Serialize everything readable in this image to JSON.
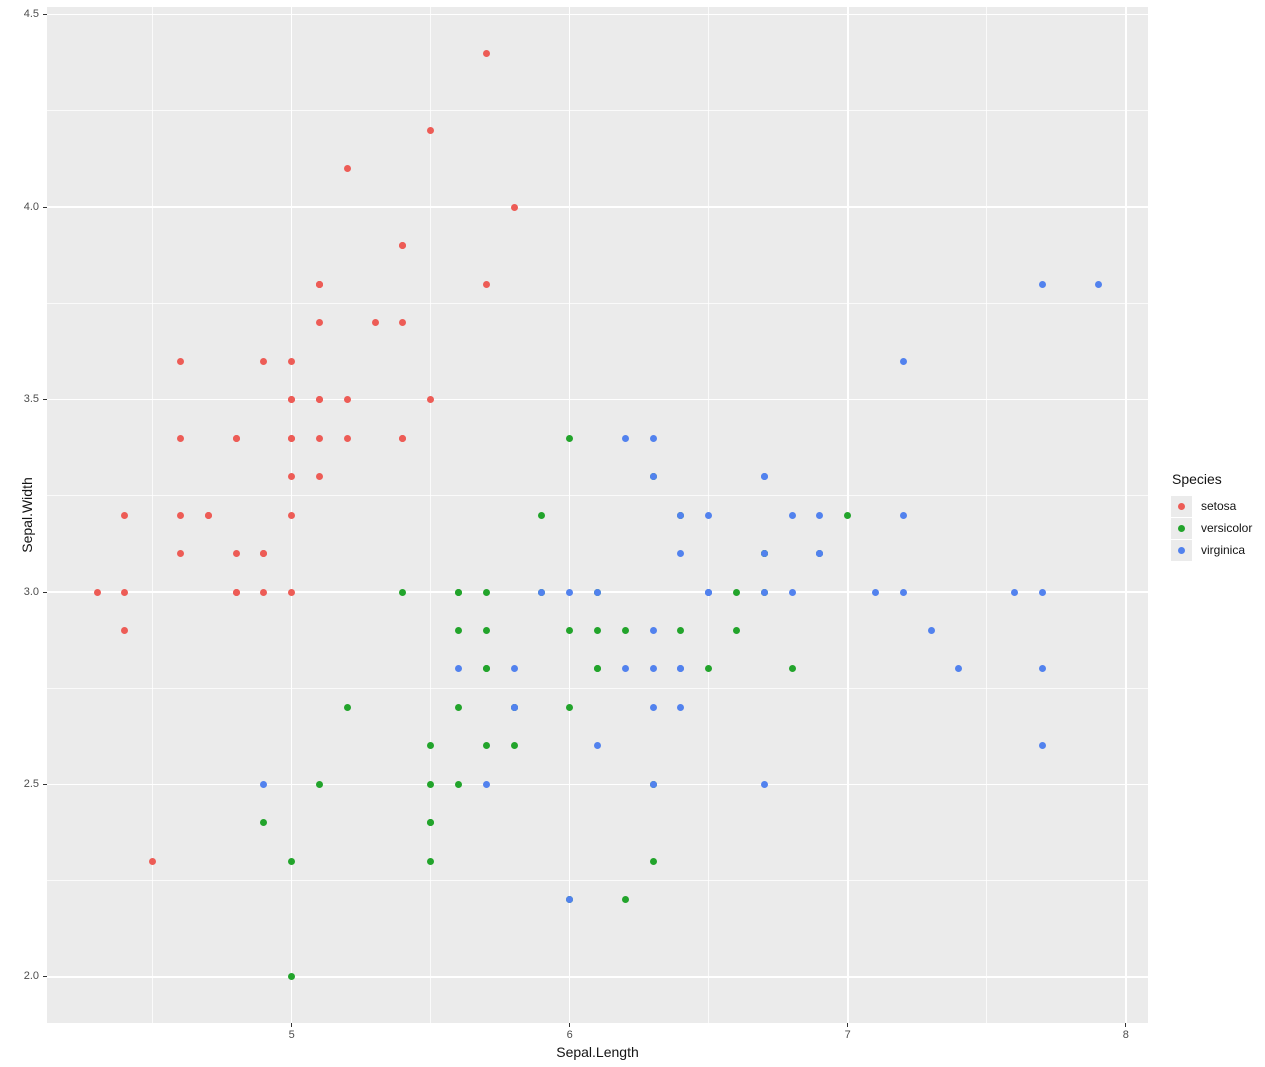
{
  "style": {
    "background": "#FFFFFF",
    "panel_background": "#EBEBEB",
    "grid_color": "#FFFFFF",
    "tick_color": "#333333",
    "tick_label_color": "#4D4D4D",
    "axis_title_color": "#141414"
  },
  "legend": {
    "title": "Species",
    "position": "right",
    "items": [
      {
        "label": "setosa",
        "color": "#ED5C56"
      },
      {
        "label": "versicolor",
        "color": "#22A42B"
      },
      {
        "label": "virginica",
        "color": "#5282EE"
      }
    ]
  },
  "chart_data": {
    "type": "scatter",
    "title": "",
    "xlabel": "Sepal.Length",
    "ylabel": "Sepal.Width",
    "xlim": [
      4.12,
      8.08
    ],
    "ylim": [
      1.88,
      4.52
    ],
    "grid": true,
    "legend_title": "Species",
    "legend_position": "right",
    "x_major_ticks": [
      5,
      6,
      7,
      8
    ],
    "x_tick_labels": [
      "5",
      "6",
      "7",
      "8"
    ],
    "x_minor_ticks": [
      4.5,
      5.5,
      6.5,
      7.5
    ],
    "y_major_ticks": [
      2.0,
      2.5,
      3.0,
      3.5,
      4.0,
      4.5
    ],
    "y_tick_labels": [
      "2.0",
      "2.5",
      "3.0",
      "3.5",
      "4.0",
      "4.5"
    ],
    "y_minor_ticks": [
      2.25,
      2.75,
      3.25,
      3.75,
      4.25
    ],
    "series": [
      {
        "name": "setosa",
        "color": "#ED5C56",
        "points": [
          [
            5.1,
            3.5
          ],
          [
            4.9,
            3.0
          ],
          [
            4.7,
            3.2
          ],
          [
            4.6,
            3.1
          ],
          [
            5.0,
            3.6
          ],
          [
            5.4,
            3.9
          ],
          [
            4.6,
            3.4
          ],
          [
            5.0,
            3.4
          ],
          [
            4.4,
            2.9
          ],
          [
            4.9,
            3.1
          ],
          [
            5.4,
            3.7
          ],
          [
            4.8,
            3.4
          ],
          [
            4.8,
            3.0
          ],
          [
            4.3,
            3.0
          ],
          [
            5.8,
            4.0
          ],
          [
            5.7,
            4.4
          ],
          [
            5.4,
            3.9
          ],
          [
            5.1,
            3.5
          ],
          [
            5.7,
            3.8
          ],
          [
            5.1,
            3.8
          ],
          [
            5.4,
            3.4
          ],
          [
            5.1,
            3.7
          ],
          [
            4.6,
            3.6
          ],
          [
            5.1,
            3.3
          ],
          [
            4.8,
            3.4
          ],
          [
            5.0,
            3.0
          ],
          [
            5.0,
            3.4
          ],
          [
            5.2,
            3.5
          ],
          [
            5.2,
            3.4
          ],
          [
            4.7,
            3.2
          ],
          [
            4.8,
            3.1
          ],
          [
            5.4,
            3.4
          ],
          [
            5.2,
            4.1
          ],
          [
            5.5,
            4.2
          ],
          [
            4.9,
            3.1
          ],
          [
            5.0,
            3.2
          ],
          [
            5.5,
            3.5
          ],
          [
            4.9,
            3.6
          ],
          [
            4.4,
            3.0
          ],
          [
            5.1,
            3.4
          ],
          [
            5.0,
            3.5
          ],
          [
            4.5,
            2.3
          ],
          [
            4.4,
            3.2
          ],
          [
            5.0,
            3.5
          ],
          [
            5.1,
            3.8
          ],
          [
            4.8,
            3.0
          ],
          [
            5.1,
            3.8
          ],
          [
            4.6,
            3.2
          ],
          [
            5.3,
            3.7
          ],
          [
            5.0,
            3.3
          ]
        ]
      },
      {
        "name": "versicolor",
        "color": "#22A42B",
        "points": [
          [
            7.0,
            3.2
          ],
          [
            6.4,
            3.2
          ],
          [
            6.9,
            3.1
          ],
          [
            5.5,
            2.3
          ],
          [
            6.5,
            2.8
          ],
          [
            5.7,
            2.8
          ],
          [
            6.3,
            3.3
          ],
          [
            4.9,
            2.4
          ],
          [
            6.6,
            2.9
          ],
          [
            5.2,
            2.7
          ],
          [
            5.0,
            2.0
          ],
          [
            5.9,
            3.0
          ],
          [
            6.0,
            2.2
          ],
          [
            6.1,
            2.9
          ],
          [
            5.6,
            2.9
          ],
          [
            6.7,
            3.1
          ],
          [
            5.6,
            3.0
          ],
          [
            5.8,
            2.7
          ],
          [
            6.2,
            2.2
          ],
          [
            5.6,
            2.5
          ],
          [
            5.9,
            3.2
          ],
          [
            6.1,
            2.8
          ],
          [
            6.3,
            2.5
          ],
          [
            6.1,
            2.8
          ],
          [
            6.4,
            2.9
          ],
          [
            6.6,
            3.0
          ],
          [
            6.8,
            2.8
          ],
          [
            6.7,
            3.0
          ],
          [
            6.0,
            2.9
          ],
          [
            5.7,
            2.6
          ],
          [
            5.5,
            2.4
          ],
          [
            5.5,
            2.4
          ],
          [
            5.8,
            2.7
          ],
          [
            6.0,
            2.7
          ],
          [
            5.4,
            3.0
          ],
          [
            6.0,
            3.4
          ],
          [
            6.7,
            3.1
          ],
          [
            6.3,
            2.3
          ],
          [
            5.6,
            3.0
          ],
          [
            5.5,
            2.5
          ],
          [
            5.5,
            2.6
          ],
          [
            6.1,
            3.0
          ],
          [
            5.8,
            2.6
          ],
          [
            5.0,
            2.3
          ],
          [
            5.6,
            2.7
          ],
          [
            5.7,
            3.0
          ],
          [
            5.7,
            2.9
          ],
          [
            6.2,
            2.9
          ],
          [
            5.1,
            2.5
          ],
          [
            5.7,
            2.8
          ]
        ]
      },
      {
        "name": "virginica",
        "color": "#5282EE",
        "points": [
          [
            6.3,
            3.3
          ],
          [
            5.8,
            2.7
          ],
          [
            7.1,
            3.0
          ],
          [
            6.3,
            2.9
          ],
          [
            6.5,
            3.0
          ],
          [
            7.6,
            3.0
          ],
          [
            4.9,
            2.5
          ],
          [
            7.3,
            2.9
          ],
          [
            6.7,
            2.5
          ],
          [
            7.2,
            3.6
          ],
          [
            6.5,
            3.2
          ],
          [
            6.4,
            2.7
          ],
          [
            6.8,
            3.0
          ],
          [
            5.7,
            2.5
          ],
          [
            5.8,
            2.8
          ],
          [
            6.4,
            3.2
          ],
          [
            6.5,
            3.0
          ],
          [
            7.7,
            3.8
          ],
          [
            7.7,
            2.6
          ],
          [
            6.0,
            2.2
          ],
          [
            6.9,
            3.2
          ],
          [
            5.6,
            2.8
          ],
          [
            7.7,
            2.8
          ],
          [
            6.3,
            2.7
          ],
          [
            6.7,
            3.3
          ],
          [
            7.2,
            3.2
          ],
          [
            6.2,
            2.8
          ],
          [
            6.1,
            3.0
          ],
          [
            6.4,
            2.8
          ],
          [
            7.2,
            3.0
          ],
          [
            7.4,
            2.8
          ],
          [
            7.9,
            3.8
          ],
          [
            6.4,
            2.8
          ],
          [
            6.3,
            2.8
          ],
          [
            6.1,
            2.6
          ],
          [
            7.7,
            3.0
          ],
          [
            6.3,
            3.4
          ],
          [
            6.4,
            3.1
          ],
          [
            6.0,
            3.0
          ],
          [
            6.9,
            3.1
          ],
          [
            6.7,
            3.1
          ],
          [
            6.9,
            3.1
          ],
          [
            5.8,
            2.7
          ],
          [
            6.8,
            3.2
          ],
          [
            6.7,
            3.3
          ],
          [
            6.7,
            3.0
          ],
          [
            6.3,
            2.5
          ],
          [
            6.5,
            3.0
          ],
          [
            6.2,
            3.4
          ],
          [
            5.9,
            3.0
          ]
        ]
      }
    ]
  }
}
